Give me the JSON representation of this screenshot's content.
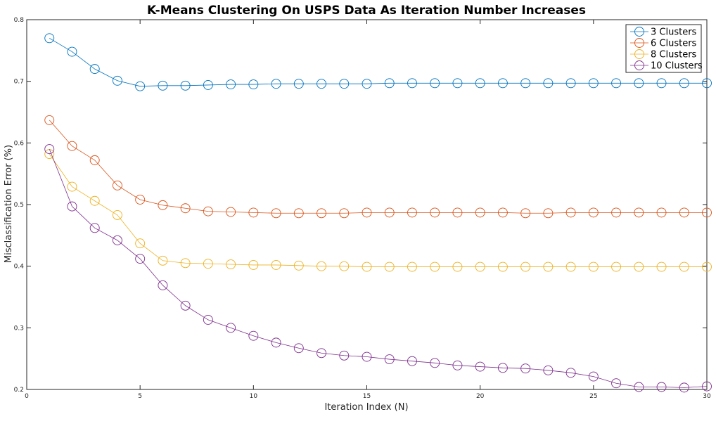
{
  "chart_data": {
    "type": "line",
    "title": "K-Means Clustering On USPS Data As Iteration Number Increases",
    "xlabel": "Iteration Index (N)",
    "ylabel": "Misclassification Error (%)",
    "xlim": [
      0,
      30
    ],
    "ylim": [
      0.2,
      0.8
    ],
    "xticks": [
      0,
      5,
      10,
      15,
      20,
      25,
      30
    ],
    "yticks": [
      0.2,
      0.3,
      0.4,
      0.5,
      0.6,
      0.7,
      0.8
    ],
    "grid": false,
    "legend_position": "top-right",
    "marker": "circle",
    "x": [
      1,
      2,
      3,
      4,
      5,
      6,
      7,
      8,
      9,
      10,
      11,
      12,
      13,
      14,
      15,
      16,
      17,
      18,
      19,
      20,
      21,
      22,
      23,
      24,
      25,
      26,
      27,
      28,
      29,
      30
    ],
    "series": [
      {
        "name": "3 Clusters",
        "color": "#0072BD",
        "values": [
          0.77,
          0.748,
          0.72,
          0.701,
          0.692,
          0.693,
          0.693,
          0.694,
          0.695,
          0.695,
          0.696,
          0.696,
          0.696,
          0.696,
          0.696,
          0.697,
          0.697,
          0.697,
          0.697,
          0.697,
          0.697,
          0.697,
          0.697,
          0.697,
          0.697,
          0.697,
          0.697,
          0.697,
          0.697,
          0.697
        ]
      },
      {
        "name": "6 Clusters",
        "color": "#D95319",
        "values": [
          0.637,
          0.595,
          0.572,
          0.531,
          0.508,
          0.499,
          0.494,
          0.489,
          0.488,
          0.487,
          0.486,
          0.486,
          0.486,
          0.486,
          0.487,
          0.487,
          0.487,
          0.487,
          0.487,
          0.487,
          0.487,
          0.486,
          0.486,
          0.487,
          0.487,
          0.487,
          0.487,
          0.487,
          0.487,
          0.487
        ]
      },
      {
        "name": "8 Clusters",
        "color": "#EDB120",
        "values": [
          0.582,
          0.529,
          0.506,
          0.483,
          0.437,
          0.409,
          0.405,
          0.404,
          0.403,
          0.402,
          0.402,
          0.401,
          0.4,
          0.4,
          0.399,
          0.399,
          0.399,
          0.399,
          0.399,
          0.399,
          0.399,
          0.399,
          0.399,
          0.399,
          0.399,
          0.399,
          0.399,
          0.399,
          0.399,
          0.399
        ]
      },
      {
        "name": "10 Clusters",
        "color": "#7E2F8E",
        "values": [
          0.59,
          0.497,
          0.462,
          0.442,
          0.412,
          0.369,
          0.336,
          0.313,
          0.3,
          0.287,
          0.276,
          0.267,
          0.259,
          0.255,
          0.253,
          0.249,
          0.246,
          0.243,
          0.239,
          0.237,
          0.235,
          0.234,
          0.231,
          0.227,
          0.221,
          0.21,
          0.204,
          0.204,
          0.203,
          0.205
        ]
      }
    ]
  }
}
